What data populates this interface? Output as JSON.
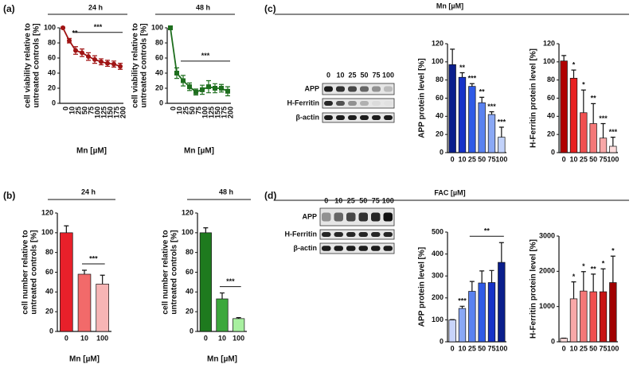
{
  "figure": {
    "panel_labels": [
      "(a)",
      "(b)",
      "(c)",
      "(d)"
    ],
    "blots": [
      {
        "header": "Mn [µM]",
        "lanes": [
          "0",
          "10",
          "25",
          "50",
          "75",
          "100"
        ],
        "rows": [
          "APP",
          "H-Ferritin",
          "β-actin"
        ]
      },
      {
        "header": "FAC [µM]",
        "lanes": [
          "0",
          "10",
          "25",
          "50",
          "75",
          "100"
        ],
        "rows": [
          "APP",
          "H-Ferritin",
          "β-actin"
        ]
      }
    ]
  },
  "chart_data": [
    {
      "type": "line",
      "title": "24 h",
      "xlabel": "Mn [µM]",
      "ylabel": [
        "cell viability relative to",
        "untreated controls [%]"
      ],
      "categories": [
        "0",
        "10",
        "25",
        "50",
        "75",
        "100",
        "125",
        "150",
        "175",
        "200"
      ],
      "values": [
        100,
        83,
        70,
        67,
        62,
        58,
        55,
        53,
        52,
        49
      ],
      "errors": [
        1,
        3,
        5,
        5,
        5,
        5,
        4,
        4,
        4,
        4
      ],
      "stars": [
        null,
        "**",
        null,
        null,
        null,
        null,
        null,
        null,
        null,
        null
      ],
      "brackets": [
        {
          "text": "***",
          "from": "25",
          "to": "200"
        }
      ],
      "color": "#a01414",
      "marker": "circle",
      "ylim": [
        0,
        100
      ],
      "yticks": [
        0,
        20,
        40,
        60,
        80,
        100
      ]
    },
    {
      "type": "line",
      "title": "48 h",
      "xlabel": "Mn [µM]",
      "ylabel": [
        "cell viability relative to",
        "untreated controls [%]"
      ],
      "categories": [
        "0",
        "10",
        "25",
        "50",
        "75",
        "100",
        "125",
        "150",
        "175",
        "200"
      ],
      "values": [
        100,
        40,
        30,
        22,
        15,
        18,
        22,
        20,
        20,
        16
      ],
      "errors": [
        1,
        7,
        7,
        5,
        4,
        6,
        8,
        6,
        5,
        6
      ],
      "brackets": [
        {
          "text": "***",
          "from": "25",
          "to": "200"
        }
      ],
      "color": "#1e6e1e",
      "marker": "square",
      "ylim": [
        0,
        100
      ],
      "yticks": [
        0,
        20,
        40,
        60,
        80,
        100
      ]
    },
    {
      "type": "bar",
      "title": "24 h",
      "xlabel": "Mn [µM]",
      "ylabel": [
        "cell number relative to",
        "untreated controls [%]"
      ],
      "categories": [
        "0",
        "10",
        "100"
      ],
      "values": [
        100,
        58,
        48
      ],
      "errors": [
        7,
        4,
        9
      ],
      "colors": [
        "#e8202a",
        "#f26a6a",
        "#f7b5b5"
      ],
      "brackets": [
        {
          "text": "***",
          "from": "10",
          "to": "100"
        }
      ],
      "ylim": [
        0,
        120
      ],
      "yticks": [
        0,
        20,
        40,
        60,
        80,
        100,
        120
      ]
    },
    {
      "type": "bar",
      "title": "48 h",
      "xlabel": "Mn [µM]",
      "ylabel": [
        "cell number relative to",
        "untreated controls [%]"
      ],
      "categories": [
        "0",
        "10",
        "100"
      ],
      "values": [
        100,
        33,
        13
      ],
      "errors": [
        5,
        6,
        1
      ],
      "colors": [
        "#1e7a1e",
        "#3da83d",
        "#a8f0a0"
      ],
      "brackets": [
        {
          "text": "***",
          "from": "10",
          "to": "100"
        }
      ],
      "ylim": [
        0,
        120
      ],
      "yticks": [
        0,
        20,
        40,
        60,
        80,
        100,
        120
      ]
    },
    {
      "type": "bar",
      "ylabel": [
        "APP protein level [%]"
      ],
      "categories": [
        "0",
        "10",
        "25",
        "50",
        "75",
        "100"
      ],
      "values": [
        97,
        83,
        73,
        55,
        42,
        17
      ],
      "errors": [
        17,
        5,
        3,
        6,
        3,
        11
      ],
      "stars": [
        null,
        "**",
        "***",
        "**",
        "***",
        "***"
      ],
      "colors": [
        "#0a1e8c",
        "#1632c8",
        "#2f5ae6",
        "#5a82f0",
        "#8aa8f5",
        "#c2d2fa"
      ],
      "ylim": [
        0,
        120
      ],
      "yticks": [
        0,
        20,
        40,
        60,
        80,
        100,
        120
      ]
    },
    {
      "type": "bar",
      "ylabel": [
        "H-Ferritin protein level [%]"
      ],
      "categories": [
        "0",
        "10",
        "25",
        "50",
        "75",
        "100"
      ],
      "values": [
        101,
        82,
        44,
        32,
        16,
        7
      ],
      "errors": [
        6,
        9,
        25,
        22,
        16,
        10
      ],
      "stars": [
        null,
        "*",
        "*",
        "**",
        "***",
        "***"
      ],
      "colors": [
        "#b00000",
        "#e82020",
        "#f05050",
        "#f47878",
        "#f8a8a8",
        "#fcdcdc"
      ],
      "ylim": [
        0,
        120
      ],
      "yticks": [
        0,
        20,
        40,
        60,
        80,
        100,
        120
      ]
    },
    {
      "type": "bar",
      "ylabel": [
        "APP protein level [%]"
      ],
      "categories": [
        "0",
        "10",
        "25",
        "50",
        "75",
        "100"
      ],
      "values": [
        100,
        152,
        230,
        268,
        270,
        362
      ],
      "errors": [
        1,
        10,
        45,
        55,
        55,
        90
      ],
      "stars": [
        null,
        "***",
        null,
        null,
        null,
        null
      ],
      "brackets": [
        {
          "text": "**",
          "from": "25",
          "to": "100"
        }
      ],
      "colors": [
        "#c8d4fa",
        "#8aa8f5",
        "#5a82f0",
        "#2f5ae6",
        "#1632c8",
        "#0a1e8c"
      ],
      "ylim": [
        0,
        500
      ],
      "yticks": [
        0,
        100,
        200,
        300,
        400,
        500
      ]
    },
    {
      "type": "bar",
      "ylabel": [
        "H-Ferritin protein level [%]"
      ],
      "categories": [
        "0",
        "10",
        "25",
        "50",
        "75",
        "100"
      ],
      "values": [
        100,
        1220,
        1440,
        1420,
        1420,
        1680
      ],
      "errors": [
        1,
        480,
        550,
        500,
        650,
        750
      ],
      "stars": [
        null,
        "*",
        "*",
        "**",
        "*",
        "*"
      ],
      "colors": [
        "#fcdcdc",
        "#f8a8a8",
        "#f47878",
        "#f05050",
        "#c81414",
        "#a00000"
      ],
      "ylim": [
        0,
        3000
      ],
      "yticks": [
        0,
        1000,
        2000,
        3000
      ]
    }
  ]
}
